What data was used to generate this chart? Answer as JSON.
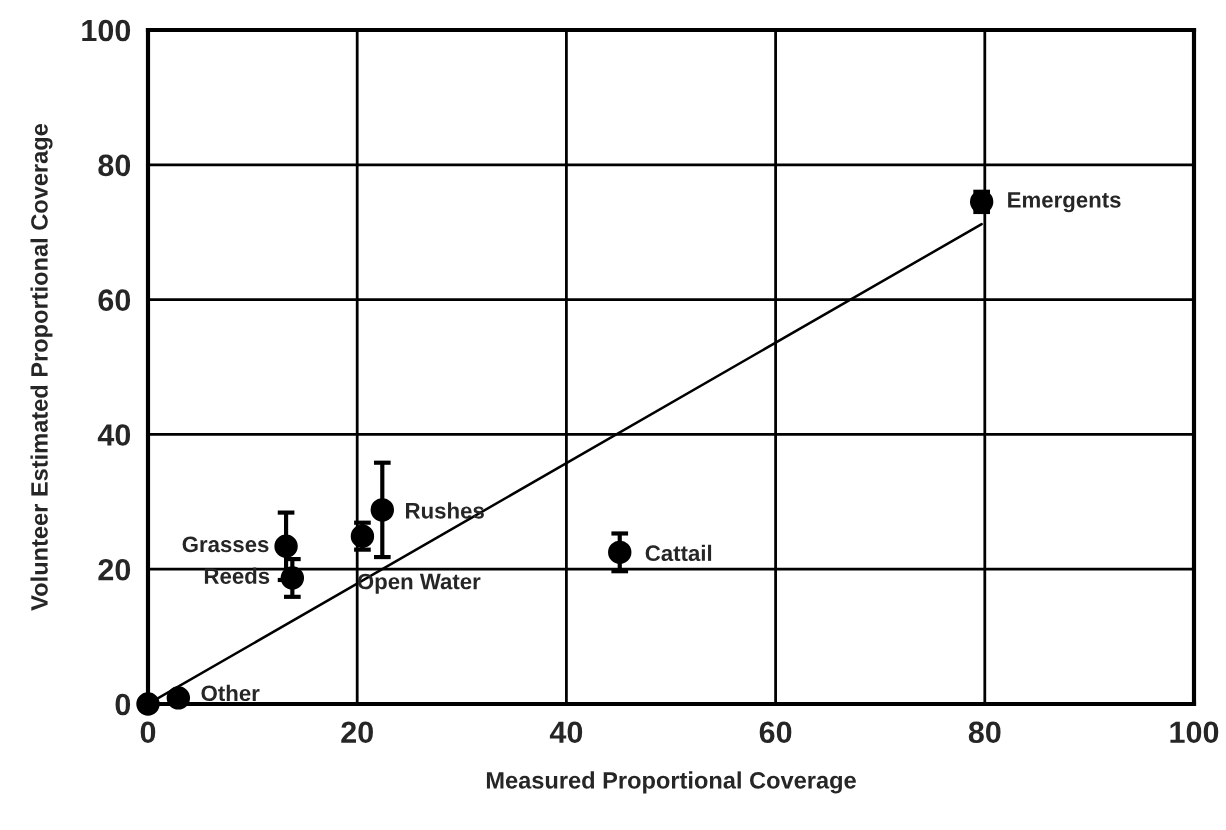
{
  "chart_data": {
    "type": "scatter",
    "xlabel": "Measured Proportional Coverage",
    "ylabel": "Volunteer Estimated Proportional Coverage",
    "xlim": [
      0,
      100
    ],
    "ylim": [
      0,
      100
    ],
    "xticks": [
      0,
      20,
      40,
      60,
      80,
      100
    ],
    "yticks": [
      0,
      20,
      40,
      60,
      80,
      100
    ],
    "grid": true,
    "legend": false,
    "marker": "circle",
    "series": [
      {
        "color": "#000000",
        "x": [
          0,
          2.9,
          13.2,
          13.8,
          20.5,
          22.4,
          45.1,
          79.7
        ],
        "values": [
          0,
          0.9,
          23.4,
          18.7,
          24.9,
          28.8,
          22.5,
          74.5
        ],
        "errors": [
          null,
          null,
          5,
          2.8,
          2,
          7,
          2.8,
          1.5
        ]
      },
      {
        "type": "line",
        "color": "#000000",
        "x": [
          0,
          79.7
        ],
        "values": [
          0,
          71.2
        ],
        "line_style": "solid",
        "marker": "none"
      }
    ],
    "annotations": [
      {
        "text": "Other",
        "x": 2.9,
        "y": 0.9
      },
      {
        "text": "Grasses",
        "x": 13.2,
        "y": 23.4
      },
      {
        "text": "Reeds",
        "x": 13.8,
        "y": 18.7
      },
      {
        "text": "Open Water",
        "x": 20.5,
        "y": 24.9
      },
      {
        "text": "Rushes",
        "x": 22.4,
        "y": 28.8
      },
      {
        "text": "Cattail",
        "x": 45.1,
        "y": 22.5
      },
      {
        "text": "Emergents",
        "x": 79.7,
        "y": 74.5
      }
    ]
  }
}
